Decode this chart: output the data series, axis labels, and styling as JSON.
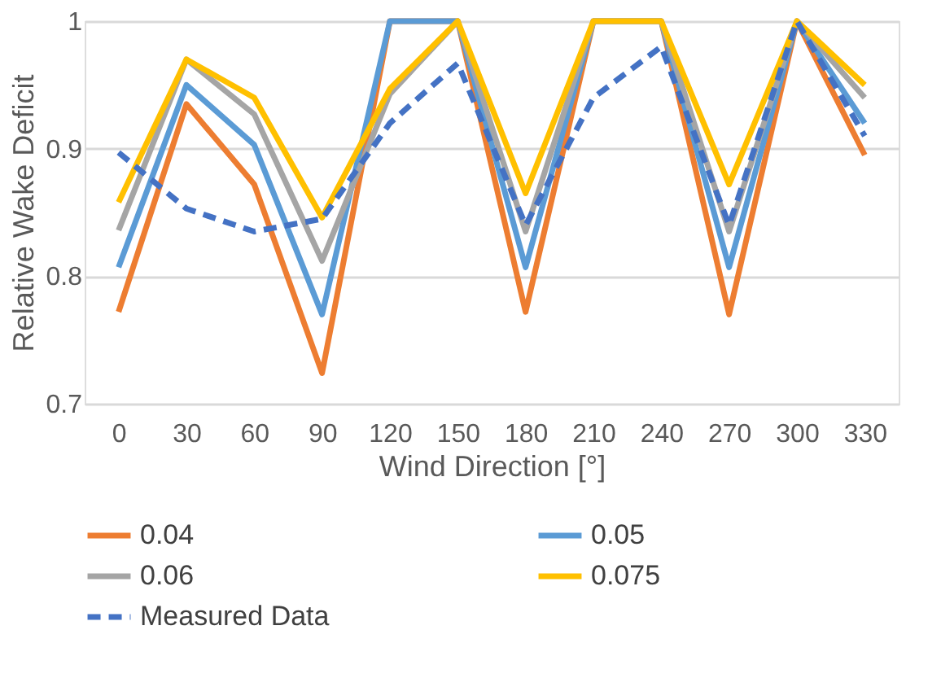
{
  "chart_data": {
    "type": "line",
    "xlabel": "Wind Direction [°]",
    "ylabel": "Relative Wake Deficit",
    "categories": [
      "0",
      "30",
      "60",
      "90",
      "120",
      "150",
      "180",
      "210",
      "240",
      "270",
      "300",
      "330"
    ],
    "series": [
      {
        "name": "0.04",
        "color": "#ed7d31",
        "values": [
          0.772,
          0.935,
          0.872,
          0.724,
          1,
          1,
          0.772,
          1,
          1,
          0.77,
          1,
          0.895
        ]
      },
      {
        "name": "0.05",
        "color": "#5b9bd5",
        "values": [
          0.807,
          0.95,
          0.903,
          0.77,
          1,
          1,
          0.807,
          1,
          1,
          0.807,
          1,
          0.92
        ]
      },
      {
        "name": "0.06",
        "color": "#a5a5a5",
        "values": [
          0.836,
          0.97,
          0.927,
          0.812,
          0.943,
          1,
          0.835,
          1,
          1,
          0.835,
          1,
          0.94
        ]
      },
      {
        "name": "0.075",
        "color": "#ffc000",
        "values": [
          0.858,
          0.97,
          0.94,
          0.846,
          0.947,
          1,
          0.865,
          1,
          1,
          0.872,
          1,
          0.95
        ]
      },
      {
        "name": "Measured Data",
        "color": "#4472c4",
        "line_style": "dashed",
        "values": [
          0.897,
          0.853,
          0.835,
          0.845,
          0.92,
          0.967,
          0.84,
          0.94,
          0.98,
          0.84,
          1.0,
          0.91
        ]
      }
    ],
    "ylim": [
      0.7,
      1
    ],
    "yticks": [
      0.7,
      0.8,
      0.9,
      1
    ],
    "grid": "y",
    "legend": "bottom",
    "marker": "none"
  }
}
